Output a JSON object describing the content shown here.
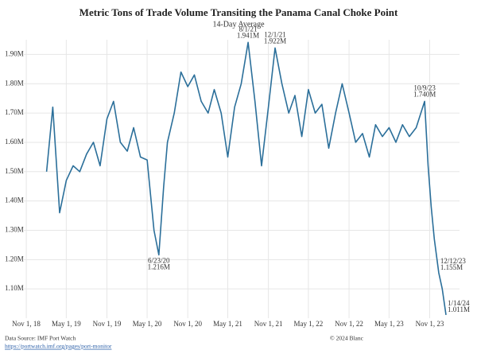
{
  "chart_data": {
    "type": "line",
    "title": "Metric Tons of Trade Volume Transiting the Panama Canal Choke Point",
    "subtitle": "14-Day Average",
    "x": [
      "2019-02-01",
      "2019-03-01",
      "2019-04-01",
      "2019-05-01",
      "2019-06-01",
      "2019-07-01",
      "2019-08-01",
      "2019-09-01",
      "2019-10-01",
      "2019-11-01",
      "2019-12-01",
      "2020-01-01",
      "2020-02-01",
      "2020-03-01",
      "2020-04-01",
      "2020-05-01",
      "2020-06-01",
      "2020-06-23",
      "2020-07-15",
      "2020-08-01",
      "2020-09-01",
      "2020-10-01",
      "2020-11-01",
      "2020-12-01",
      "2021-01-01",
      "2021-02-01",
      "2021-03-01",
      "2021-04-01",
      "2021-05-01",
      "2021-06-01",
      "2021-07-01",
      "2021-08-01",
      "2021-09-01",
      "2021-10-01",
      "2021-11-01",
      "2021-12-01",
      "2022-01-01",
      "2022-02-01",
      "2022-03-01",
      "2022-04-01",
      "2022-05-01",
      "2022-06-01",
      "2022-07-01",
      "2022-08-01",
      "2022-09-01",
      "2022-10-01",
      "2022-11-01",
      "2022-12-01",
      "2023-01-01",
      "2023-02-01",
      "2023-03-01",
      "2023-04-01",
      "2023-05-01",
      "2023-06-01",
      "2023-07-01",
      "2023-08-01",
      "2023-09-01",
      "2023-10-09",
      "2023-10-25",
      "2023-11-08",
      "2023-11-22",
      "2023-12-12",
      "2023-12-28",
      "2024-01-14"
    ],
    "series": [
      {
        "name": "Trade volume",
        "color": "#2b6f9a",
        "values": [
          1.5,
          1.72,
          1.36,
          1.47,
          1.52,
          1.5,
          1.56,
          1.6,
          1.52,
          1.68,
          1.74,
          1.6,
          1.57,
          1.65,
          1.55,
          1.54,
          1.3,
          1.216,
          1.45,
          1.6,
          1.7,
          1.84,
          1.79,
          1.83,
          1.74,
          1.7,
          1.78,
          1.7,
          1.55,
          1.72,
          1.8,
          1.941,
          1.74,
          1.52,
          1.72,
          1.922,
          1.8,
          1.7,
          1.76,
          1.62,
          1.78,
          1.7,
          1.73,
          1.58,
          1.7,
          1.8,
          1.7,
          1.6,
          1.63,
          1.55,
          1.66,
          1.62,
          1.65,
          1.6,
          1.66,
          1.62,
          1.65,
          1.74,
          1.52,
          1.38,
          1.27,
          1.155,
          1.1,
          1.011
        ]
      }
    ],
    "annotations": [
      {
        "x": "2020-06-23",
        "date": "6/23/20",
        "value": 1.216,
        "label": "1.216M",
        "position": "below"
      },
      {
        "x": "2021-08-01",
        "date": "8/1/21",
        "value": 1.941,
        "label": "1.941M",
        "position": "above"
      },
      {
        "x": "2021-12-01",
        "date": "12/1/21",
        "value": 1.922,
        "label": "1.922M",
        "position": "above"
      },
      {
        "x": "2023-10-09",
        "date": "10/9/23",
        "value": 1.74,
        "label": "1.740M",
        "position": "above"
      },
      {
        "x": "2023-12-12",
        "date": "12/12/23",
        "value": 1.155,
        "label": "1.155M",
        "position": "right"
      },
      {
        "x": "2024-01-14",
        "date": "1/14/24",
        "value": 1.011,
        "label": "1.011M",
        "position": "right"
      }
    ],
    "xlim": [
      "2018-10-21",
      "2024-03-15"
    ],
    "xticks": [
      {
        "value": "2018-11-01",
        "label": "Nov 1, 18"
      },
      {
        "value": "2019-05-01",
        "label": "May 1, 19"
      },
      {
        "value": "2019-11-01",
        "label": "Nov 1, 19"
      },
      {
        "value": "2020-05-01",
        "label": "May 1, 20"
      },
      {
        "value": "2020-11-01",
        "label": "Nov 1, 20"
      },
      {
        "value": "2021-05-01",
        "label": "May 1, 21"
      },
      {
        "value": "2021-11-01",
        "label": "Nov 1, 21"
      },
      {
        "value": "2022-05-01",
        "label": "May 1, 22"
      },
      {
        "value": "2022-11-01",
        "label": "Nov 1, 22"
      },
      {
        "value": "2023-05-01",
        "label": "May 1, 23"
      },
      {
        "value": "2023-11-01",
        "label": "Nov 1, 23"
      }
    ],
    "ylim": [
      1.0,
      1.95
    ],
    "yticks": [
      {
        "value": 1.1,
        "label": "1.10M"
      },
      {
        "value": 1.2,
        "label": "1.20M"
      },
      {
        "value": 1.3,
        "label": "1.30M"
      },
      {
        "value": 1.4,
        "label": "1.40M"
      },
      {
        "value": 1.5,
        "label": "1.50M"
      },
      {
        "value": 1.6,
        "label": "1.60M"
      },
      {
        "value": 1.7,
        "label": "1.70M"
      },
      {
        "value": 1.8,
        "label": "1.80M"
      },
      {
        "value": 1.9,
        "label": "1.90M"
      }
    ],
    "grid": true,
    "source": "Data Source: IMF Port Watch",
    "source_url": "https://portwatch.imf.org/pages/port-monitor",
    "copyright": "© 2024 Blanc"
  }
}
